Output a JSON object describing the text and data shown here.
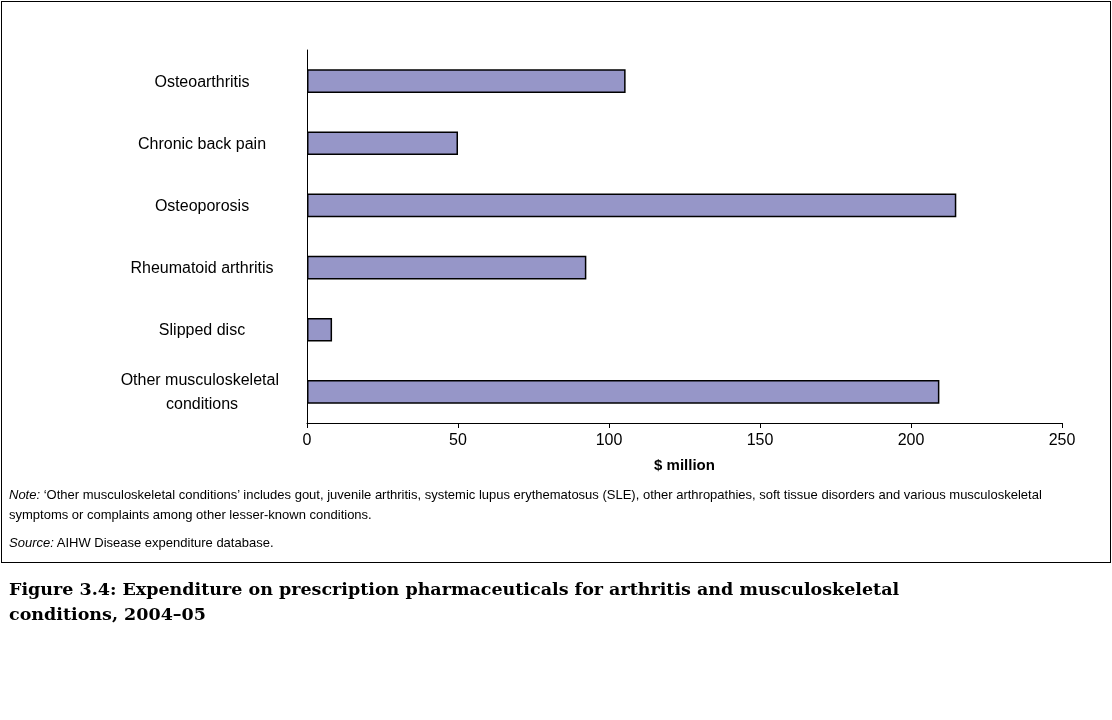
{
  "chart_data": {
    "type": "bar",
    "orientation": "horizontal",
    "title": "Figure 3.4: Expenditure on prescription pharmaceuticals for arthritis and musculoskeletal conditions, 2004–05",
    "xlabel": "$ million",
    "categories": [
      "Osteoarthritis",
      "Chronic back pain",
      "Osteoporosis",
      "Rheumatoid arthritis",
      "Slipped disc",
      "Other musculoskeletal conditions"
    ],
    "values": [
      105.5,
      50,
      215,
      92.5,
      8.3,
      209.4
    ],
    "color": "#9696c8",
    "xlim": [
      0,
      250
    ],
    "xticks": [
      0,
      50,
      100,
      150,
      200,
      250
    ],
    "grid": false,
    "annotations": [
      "Note: ‘Other musculoskeletal conditions’ includes gout, juvenile arthritis, systemic lupus erythematosus (SLE), other arthropathies, soft tissue disorders and various musculoskeletal symptoms or complaints among other lesser-known conditions.",
      "Source: AIHW Disease expenditure database."
    ]
  }
}
